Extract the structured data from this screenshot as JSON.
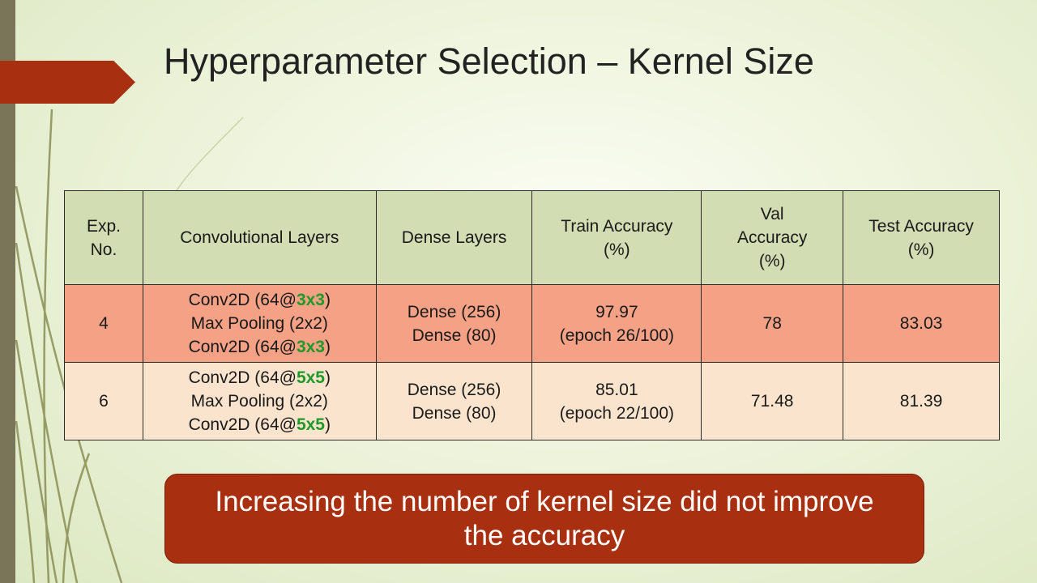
{
  "slide": {
    "title": "Hyperparameter Selection – Kernel Size",
    "colors": {
      "accent": "#a83010",
      "sidebar": "#7a7558",
      "header_fill": "#d3ddb4",
      "row1_fill": "#f4a186",
      "row2_fill": "#fae4cd",
      "kernel_highlight": "#1e9a2a"
    }
  },
  "table": {
    "headers": {
      "exp_no": [
        "Exp.",
        "No."
      ],
      "conv": [
        "Convolutional Layers"
      ],
      "dense": [
        "Dense Layers"
      ],
      "train": [
        "Train Accuracy",
        "(%)"
      ],
      "val": [
        "Val",
        "Accuracy",
        "(%)"
      ],
      "test": [
        "Test Accuracy",
        "(%)"
      ]
    },
    "rows": [
      {
        "exp_no": "4",
        "conv": [
          {
            "pre": "Conv2D (64@",
            "k": "3x3",
            "post": ")"
          },
          {
            "text": "Max Pooling (2x2)"
          },
          {
            "pre": "Conv2D (64@",
            "k": "3x3",
            "post": ")"
          }
        ],
        "dense": [
          "Dense (256)",
          "Dense (80)"
        ],
        "train": [
          "97.97",
          "(epoch 26/100)"
        ],
        "val": "78",
        "test": "83.03"
      },
      {
        "exp_no": "6",
        "conv": [
          {
            "pre": "Conv2D (64@",
            "k": "5x5",
            "post": ")"
          },
          {
            "text": "Max Pooling (2x2)"
          },
          {
            "pre": "Conv2D (64@",
            "k": "5x5",
            "post": ")"
          }
        ],
        "dense": [
          "Dense (256)",
          "Dense (80)"
        ],
        "train": [
          "85.01",
          "(epoch 22/100)"
        ],
        "val": "71.48",
        "test": "81.39"
      }
    ]
  },
  "callout": {
    "text": "Increasing the number of kernel size did not improve the accuracy"
  }
}
